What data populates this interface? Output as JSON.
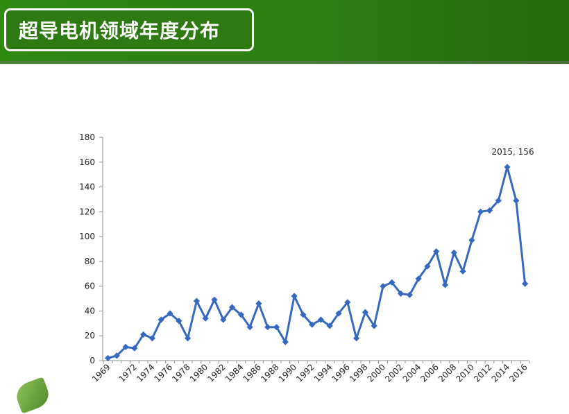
{
  "header": {
    "title": "超导电机领域年度分布"
  },
  "theme": {
    "header_green": "#2d7a12",
    "line_color": "#3569c1"
  },
  "chart_data": {
    "type": "line",
    "title": "",
    "xlabel": "",
    "ylabel": "",
    "ylim": [
      0,
      180
    ],
    "yticks": [
      0,
      20,
      40,
      60,
      80,
      100,
      120,
      140,
      160,
      180
    ],
    "xtick_labels": [
      "1969",
      "1972",
      "1974",
      "1976",
      "1978",
      "1980",
      "1982",
      "1984",
      "1986",
      "1988",
      "1990",
      "1992",
      "1994",
      "1996",
      "1998",
      "2000",
      "2002",
      "2004",
      "2006",
      "2008",
      "2010",
      "2012",
      "2014",
      "2016"
    ],
    "grid": false,
    "legend": "none",
    "series": [
      {
        "values": [
          2,
          4,
          11,
          10,
          21,
          18,
          33,
          38,
          32,
          18,
          48,
          34,
          49,
          33,
          43,
          37,
          27,
          46,
          27,
          27,
          15,
          52,
          37,
          29,
          33,
          28,
          38,
          47,
          18,
          39,
          28,
          60,
          63,
          54,
          53,
          66,
          76,
          88,
          61,
          87,
          72,
          97,
          120,
          121,
          129,
          156,
          129,
          62
        ]
      }
    ],
    "annotations": [
      {
        "text": "2015, 156",
        "point_index": 45
      }
    ]
  }
}
